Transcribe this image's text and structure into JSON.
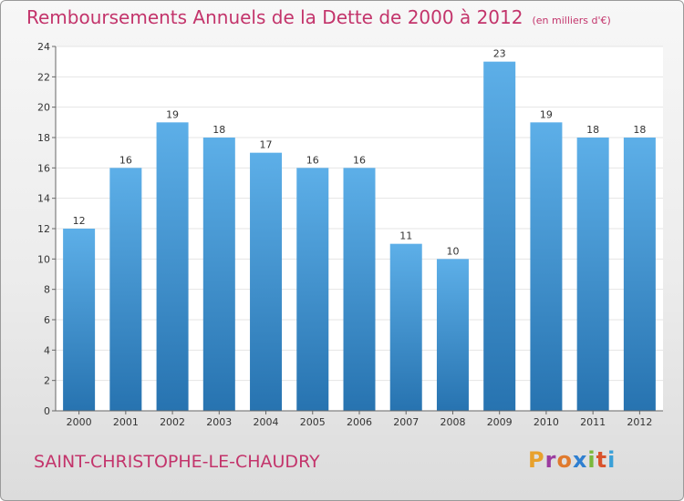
{
  "header": {
    "title": "Remboursements Annuels de la Dette de 2000 à 2012",
    "unit": "(en milliers d'€)"
  },
  "footer": {
    "town": "SAINT-CHRISTOPHE-LE-CHAUDRY",
    "brand": "Proxiti"
  },
  "colors": {
    "title": "#c3346b",
    "bar_top": "#5dafe8",
    "bar_bottom": "#2773b0",
    "brand_letters": [
      "#e8a12c",
      "#9c3ca0",
      "#e07a2e",
      "#2f7fd0",
      "#7ab83c",
      "#d9532c",
      "#3aa0d8"
    ]
  },
  "chart_data": {
    "type": "bar",
    "title": "Remboursements Annuels de la Dette de 2000 à 2012",
    "subtitle": "(en milliers d'€)",
    "xlabel": "",
    "ylabel": "",
    "categories": [
      "2000",
      "2001",
      "2002",
      "2003",
      "2004",
      "2005",
      "2006",
      "2007",
      "2008",
      "2009",
      "2010",
      "2011",
      "2012"
    ],
    "values": [
      12,
      16,
      19,
      18,
      17,
      16,
      16,
      11,
      10,
      23,
      19,
      18,
      18
    ],
    "ylim": [
      0,
      24
    ],
    "yticks": [
      0,
      2,
      4,
      6,
      8,
      10,
      12,
      14,
      16,
      18,
      20,
      22,
      24
    ],
    "grid": true,
    "legend": "none",
    "data_labels": true
  }
}
